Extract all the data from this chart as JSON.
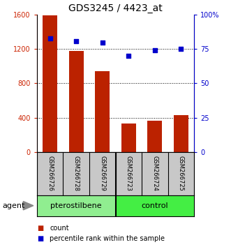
{
  "title": "GDS3245 / 4423_at",
  "samples": [
    "GSM266726",
    "GSM266728",
    "GSM266729",
    "GSM266723",
    "GSM266724",
    "GSM266725"
  ],
  "counts": [
    1590,
    1175,
    940,
    330,
    365,
    430
  ],
  "percentiles": [
    83,
    81,
    80,
    70,
    74,
    75
  ],
  "bar_color": "#BB2200",
  "scatter_color": "#0000CC",
  "left_ylim": [
    0,
    1600
  ],
  "right_ylim": [
    0,
    100
  ],
  "left_yticks": [
    0,
    400,
    800,
    1200,
    1600
  ],
  "right_yticks": [
    0,
    25,
    50,
    75,
    100
  ],
  "right_yticklabels": [
    "0",
    "25",
    "50",
    "75",
    "100%"
  ],
  "grid_values": [
    400,
    800,
    1200
  ],
  "agent_label": "agent",
  "legend_count_label": "count",
  "legend_pct_label": "percentile rank within the sample",
  "title_fontsize": 10,
  "tick_fontsize": 7,
  "sample_fontsize": 6,
  "group_fontsize": 8,
  "legend_fontsize": 7,
  "bar_width": 0.55,
  "ptero_color": "#90EE90",
  "ctrl_color": "#44EE44",
  "label_bg_color": "#C8C8C8",
  "left_tick_color": "#CC2200",
  "right_tick_color": "#0000CC"
}
